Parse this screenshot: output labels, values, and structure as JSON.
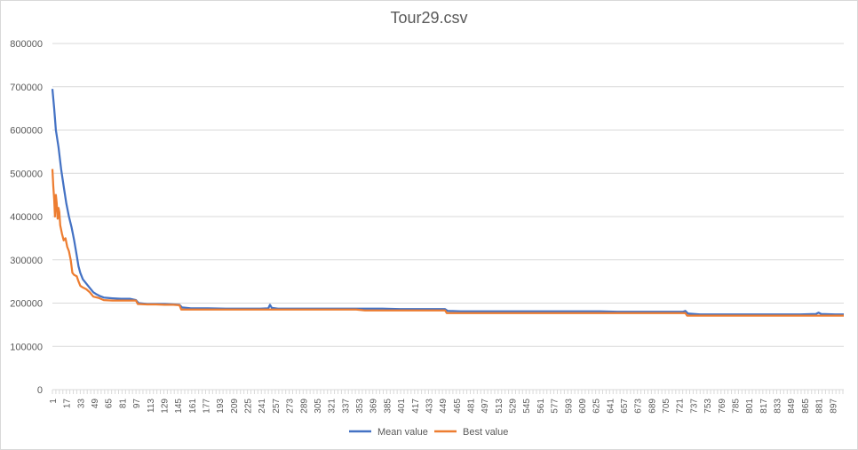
{
  "chart_data": {
    "type": "line",
    "title": "Tour29.csv",
    "xlabel": "",
    "ylabel": "",
    "ylim": [
      0,
      800000
    ],
    "yticks": [
      "0",
      "100000",
      "200000",
      "300000",
      "400000",
      "500000",
      "600000",
      "700000",
      "800000"
    ],
    "x_range": [
      1,
      910
    ],
    "xticks": [
      "1",
      "17",
      "33",
      "49",
      "65",
      "81",
      "97",
      "113",
      "129",
      "145",
      "161",
      "177",
      "193",
      "209",
      "225",
      "241",
      "257",
      "273",
      "289",
      "305",
      "321",
      "337",
      "353",
      "369",
      "385",
      "401",
      "417",
      "433",
      "449",
      "465",
      "481",
      "497",
      "513",
      "529",
      "545",
      "561",
      "577",
      "593",
      "609",
      "625",
      "641",
      "657",
      "673",
      "689",
      "705",
      "721",
      "737",
      "753",
      "769",
      "785",
      "801",
      "817",
      "833",
      "849",
      "865",
      "881",
      "897"
    ],
    "grid": true,
    "legend_position": "bottom",
    "series": [
      {
        "name": "Mean value",
        "color": "#4472c4",
        "points": [
          [
            1,
            695000
          ],
          [
            3,
            650000
          ],
          [
            5,
            600000
          ],
          [
            8,
            560000
          ],
          [
            11,
            510000
          ],
          [
            14,
            470000
          ],
          [
            17,
            430000
          ],
          [
            20,
            400000
          ],
          [
            23,
            375000
          ],
          [
            26,
            345000
          ],
          [
            29,
            310000
          ],
          [
            31,
            285000
          ],
          [
            33,
            270000
          ],
          [
            36,
            255000
          ],
          [
            40,
            245000
          ],
          [
            44,
            235000
          ],
          [
            48,
            225000
          ],
          [
            52,
            220000
          ],
          [
            56,
            216000
          ],
          [
            60,
            213000
          ],
          [
            70,
            211000
          ],
          [
            80,
            210000
          ],
          [
            90,
            210000
          ],
          [
            97,
            207000
          ],
          [
            100,
            200000
          ],
          [
            110,
            198000
          ],
          [
            120,
            198000
          ],
          [
            130,
            198000
          ],
          [
            140,
            197000
          ],
          [
            147,
            196000
          ],
          [
            150,
            190000
          ],
          [
            160,
            188000
          ],
          [
            180,
            188000
          ],
          [
            200,
            187000
          ],
          [
            220,
            187000
          ],
          [
            240,
            187000
          ],
          [
            249,
            188000
          ],
          [
            251,
            196000
          ],
          [
            253,
            189000
          ],
          [
            260,
            187000
          ],
          [
            280,
            187000
          ],
          [
            300,
            187000
          ],
          [
            320,
            187000
          ],
          [
            340,
            187000
          ],
          [
            360,
            187000
          ],
          [
            380,
            187000
          ],
          [
            400,
            186000
          ],
          [
            420,
            186000
          ],
          [
            440,
            186000
          ],
          [
            452,
            186000
          ],
          [
            455,
            182000
          ],
          [
            470,
            181000
          ],
          [
            490,
            181000
          ],
          [
            510,
            181000
          ],
          [
            530,
            181000
          ],
          [
            550,
            181000
          ],
          [
            570,
            181000
          ],
          [
            590,
            181000
          ],
          [
            610,
            181000
          ],
          [
            630,
            181000
          ],
          [
            650,
            180000
          ],
          [
            670,
            180000
          ],
          [
            690,
            180000
          ],
          [
            710,
            180000
          ],
          [
            725,
            180000
          ],
          [
            728,
            182000
          ],
          [
            731,
            176000
          ],
          [
            745,
            174000
          ],
          [
            760,
            174000
          ],
          [
            780,
            174000
          ],
          [
            800,
            174000
          ],
          [
            820,
            174000
          ],
          [
            840,
            174000
          ],
          [
            860,
            174000
          ],
          [
            878,
            175000
          ],
          [
            881,
            178000
          ],
          [
            884,
            175000
          ],
          [
            900,
            174000
          ],
          [
            910,
            174000
          ]
        ]
      },
      {
        "name": "Best value",
        "color": "#ed7d31",
        "points": [
          [
            1,
            510000
          ],
          [
            2,
            470000
          ],
          [
            3,
            440000
          ],
          [
            4,
            400000
          ],
          [
            5,
            450000
          ],
          [
            6,
            430000
          ],
          [
            7,
            395000
          ],
          [
            8,
            420000
          ],
          [
            9,
            410000
          ],
          [
            10,
            380000
          ],
          [
            12,
            360000
          ],
          [
            14,
            345000
          ],
          [
            16,
            350000
          ],
          [
            18,
            330000
          ],
          [
            20,
            320000
          ],
          [
            22,
            300000
          ],
          [
            24,
            270000
          ],
          [
            26,
            265000
          ],
          [
            29,
            262000
          ],
          [
            31,
            250000
          ],
          [
            33,
            240000
          ],
          [
            36,
            236000
          ],
          [
            40,
            232000
          ],
          [
            44,
            225000
          ],
          [
            48,
            215000
          ],
          [
            54,
            212000
          ],
          [
            60,
            207000
          ],
          [
            70,
            206000
          ],
          [
            80,
            206000
          ],
          [
            90,
            206000
          ],
          [
            97,
            206000
          ],
          [
            99,
            198000
          ],
          [
            110,
            197000
          ],
          [
            120,
            197000
          ],
          [
            130,
            196000
          ],
          [
            140,
            196000
          ],
          [
            147,
            195000
          ],
          [
            149,
            185000
          ],
          [
            160,
            185000
          ],
          [
            200,
            185000
          ],
          [
            250,
            185000
          ],
          [
            300,
            185000
          ],
          [
            350,
            185000
          ],
          [
            360,
            183000
          ],
          [
            400,
            183000
          ],
          [
            452,
            183000
          ],
          [
            454,
            177000
          ],
          [
            500,
            177000
          ],
          [
            550,
            177000
          ],
          [
            600,
            177000
          ],
          [
            650,
            177000
          ],
          [
            700,
            177000
          ],
          [
            728,
            177000
          ],
          [
            730,
            171000
          ],
          [
            780,
            171000
          ],
          [
            830,
            171000
          ],
          [
            880,
            171000
          ],
          [
            910,
            171000
          ]
        ]
      }
    ]
  }
}
